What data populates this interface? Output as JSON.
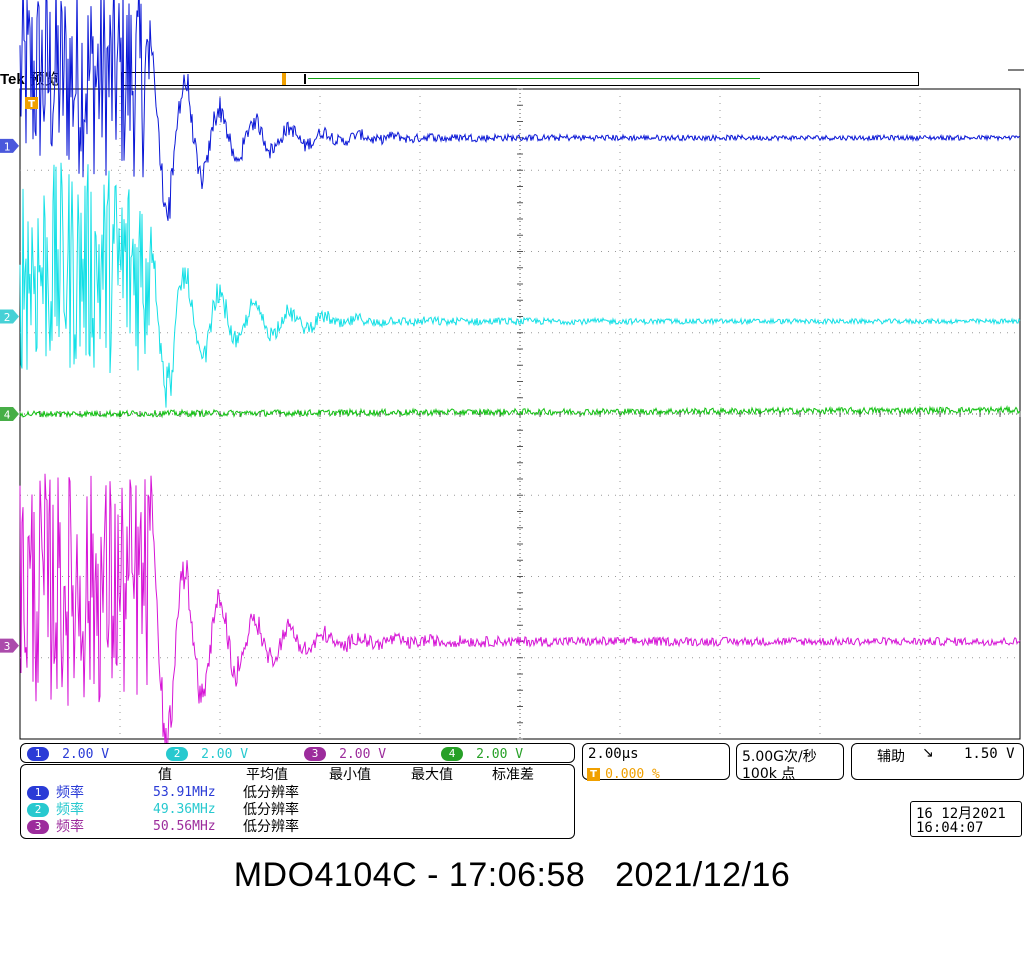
{
  "header": {
    "brand": "Tek",
    "mode": "预览"
  },
  "colors": {
    "ch1": "#0a17d6",
    "ch2": "#14e0e6",
    "ch3": "#d614d6",
    "ch4": "#10c010",
    "ch1_label": "#2a3bd6",
    "ch2_label": "#27c9cf",
    "ch3_label": "#9c2c9c",
    "ch4_label": "#27a027",
    "grid": "#9a9a9a",
    "trigger": "#f0a000"
  },
  "chart_data": {
    "type": "line",
    "title": "",
    "xlabel": "",
    "ylabel": "",
    "x_unit": "µs",
    "y_unit": "V",
    "xlim": [
      -2,
      18
    ],
    "divisions": {
      "x": 10,
      "y": 8
    },
    "grid": true,
    "series": [
      {
        "name": "1",
        "scale_v_per_div": 2.0,
        "offset_div": 3.3,
        "burst_end_us": 0.6,
        "burst_amp_div": 1.25,
        "burst_center_div": 0.85,
        "ring_peak_us": 0.7,
        "ring_peak_div": 1.5,
        "settle_level_div": 0.1,
        "noise_div": 0.03
      },
      {
        "name": "2",
        "scale_v_per_div": 2.0,
        "offset_div": 1.2,
        "burst_end_us": 0.6,
        "burst_amp_div": 1.3,
        "burst_center_div": 0.6,
        "ring_peak_us": 0.7,
        "ring_peak_div": 1.4,
        "settle_level_div": -0.06,
        "noise_div": 0.03
      },
      {
        "name": "4",
        "scale_v_per_div": 2.0,
        "offset_div": 0.0,
        "burst_end_us": 0,
        "burst_amp_div": 0,
        "burst_center_div": 0,
        "ring_peak_us": 0,
        "ring_peak_div": 0,
        "settle_level_div": 0.05,
        "noise_div": 0.04
      },
      {
        "name": "3",
        "scale_v_per_div": 2.0,
        "offset_div": -2.85,
        "burst_end_us": 0.6,
        "burst_amp_div": 1.45,
        "burst_center_div": 0.7,
        "ring_peak_us": 0.7,
        "ring_peak_div": 2.0,
        "settle_level_div": 0.05,
        "noise_div": 0.05
      }
    ]
  },
  "channels": [
    {
      "num": "1",
      "scale": "2.00 V"
    },
    {
      "num": "2",
      "scale": "2.00 V"
    },
    {
      "num": "3",
      "scale": "2.00 V"
    },
    {
      "num": "4",
      "scale": "2.00 V"
    }
  ],
  "timebase": {
    "scale": "2.00µs",
    "trigger_pos": "0.000 %"
  },
  "acquisition": {
    "rate": "5.00G次/秒",
    "points": "100k 点"
  },
  "trigger": {
    "source": "辅助",
    "slope": "↘",
    "level": "1.50 V"
  },
  "measurements": {
    "headers": [
      "值",
      "平均值",
      "最小值",
      "最大值",
      "标准差"
    ],
    "rows": [
      {
        "ch": "1",
        "name": "频率",
        "value": "53.91MHz",
        "mean": "低分辨率"
      },
      {
        "ch": "2",
        "name": "频率",
        "value": "49.36MHz",
        "mean": "低分辨率"
      },
      {
        "ch": "3",
        "name": "频率",
        "value": "50.56MHz",
        "mean": "低分辨率"
      }
    ]
  },
  "datetime": {
    "date": "16 12月2021",
    "time": "16:04:07"
  },
  "caption": "MDO4104C - 17:06:58   2021/12/16"
}
